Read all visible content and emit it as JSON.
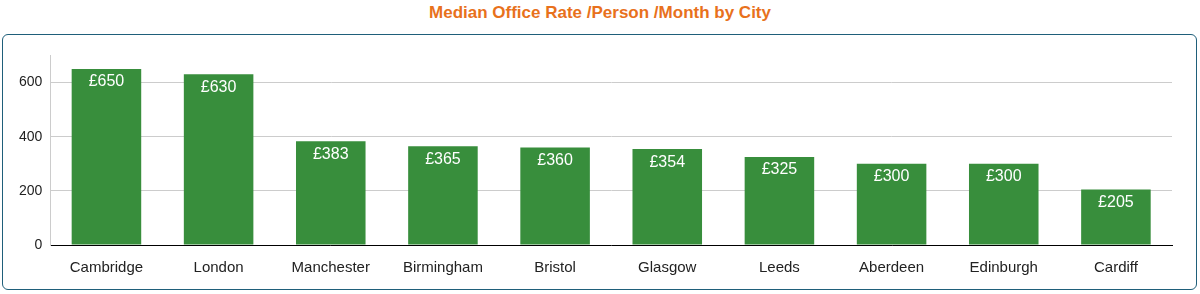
{
  "chart_data": {
    "type": "bar",
    "title": "Median Office Rate /Person /Month by City",
    "categories": [
      "Cambridge",
      "London",
      "Manchester",
      "Birmingham",
      "Bristol",
      "Glasgow",
      "Leeds",
      "Aberdeen",
      "Edinburgh",
      "Cardiff"
    ],
    "values": [
      650,
      630,
      383,
      365,
      360,
      354,
      325,
      300,
      300,
      205
    ],
    "value_labels": [
      "£650",
      "£630",
      "£383",
      "£365",
      "£360",
      "£354",
      "£325",
      "£300",
      "£300",
      "£205"
    ],
    "color": "#388e3c",
    "ylim": [
      0,
      700
    ],
    "yticks": [
      0,
      200,
      400,
      600
    ],
    "grid": true,
    "data_labels": true
  }
}
